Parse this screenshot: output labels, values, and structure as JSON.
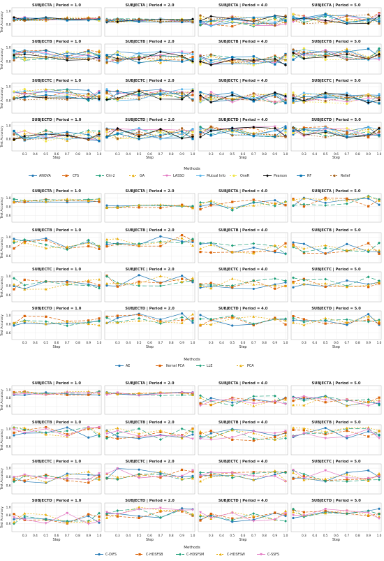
{
  "chart_data": [
    {
      "type": "line",
      "rows": [
        "SUBJECTA",
        "SUBJECTB",
        "SUBJECTC",
        "SUBJECTD"
      ],
      "periods": [
        "1.0",
        "2.0",
        "4.0",
        "5.0"
      ],
      "x": [
        0.2,
        0.3,
        0.5,
        0.7,
        0.9,
        1.0
      ],
      "xticks": [
        "0.3",
        "0.4",
        "0.5",
        "0.6",
        "0.7",
        "0.8",
        "0.9",
        "1.0"
      ],
      "xlabel": "Step",
      "ylabel": "Test Accuracy",
      "yticks": [
        "0.8",
        "1.0"
      ],
      "ylim": [
        0.65,
        1.02
      ],
      "grid": true,
      "legend_title": "Methods",
      "legend_position": "bottom",
      "series": [
        {
          "name": "ANOVA",
          "color": "#1f77b4",
          "dash": "",
          "marker": "circle"
        },
        {
          "name": "CFS",
          "color": "#d95f02",
          "dash": "4,2",
          "marker": "square"
        },
        {
          "name": "Chi-2",
          "color": "#1b9e77",
          "dash": "6,3",
          "marker": "diamond"
        },
        {
          "name": "GA",
          "color": "#e6ab02",
          "dash": "2,2",
          "marker": "triangle"
        },
        {
          "name": "LASSO",
          "color": "#e377c2",
          "dash": "",
          "marker": "tri-down"
        },
        {
          "name": "Mutual Info",
          "color": "#56b4e9",
          "dash": "",
          "marker": "circle"
        },
        {
          "name": "OneR",
          "color": "#f0e442",
          "dash": "2,2",
          "marker": "circle"
        },
        {
          "name": "Pearson",
          "color": "#000000",
          "dash": "",
          "marker": "diamond"
        },
        {
          "name": "RF",
          "color": "#0072b2",
          "dash": "",
          "marker": "square"
        },
        {
          "name": "Relief",
          "color": "#a6611a",
          "dash": "2,2",
          "marker": "circle"
        }
      ]
    },
    {
      "type": "line",
      "rows": [
        "SUBJECTA",
        "SUBJECTB",
        "SUBJECTC",
        "SUBJECTD"
      ],
      "periods": [
        "1.0",
        "2.0",
        "4.0",
        "5.0"
      ],
      "x": [
        0.2,
        0.3,
        0.5,
        0.7,
        0.9,
        1.0
      ],
      "xticks": [
        "0.3",
        "0.4",
        "0.5",
        "0.6",
        "0.7",
        "0.8",
        "0.9",
        "1.0"
      ],
      "xlabel": "Step",
      "ylabel": "Test Accuracy",
      "yticks": [
        "0.6",
        "0.8",
        "1.0"
      ],
      "ylim": [
        0.5,
        1.05
      ],
      "grid": true,
      "legend_title": "Methods",
      "legend_position": "bottom",
      "series": [
        {
          "name": "AE",
          "color": "#1f77b4",
          "dash": "",
          "marker": "circle"
        },
        {
          "name": "Kernel PCA",
          "color": "#d95f02",
          "dash": "4,2",
          "marker": "square"
        },
        {
          "name": "LLE",
          "color": "#1b9e77",
          "dash": "6,3",
          "marker": "diamond"
        },
        {
          "name": "PCA",
          "color": "#e6ab02",
          "dash": "2,2",
          "marker": "triangle"
        }
      ]
    },
    {
      "type": "line",
      "rows": [
        "SUBJECTA",
        "SUBJECTB",
        "SUBJECTC",
        "SUBJECTD"
      ],
      "periods": [
        "1.0",
        "2.0",
        "4.0",
        "5.0"
      ],
      "x": [
        0.2,
        0.3,
        0.5,
        0.7,
        0.9,
        1.0
      ],
      "xticks": [
        "0.3",
        "0.4",
        "0.5",
        "0.6",
        "0.7",
        "0.8",
        "0.9",
        "1.0"
      ],
      "xlabel": "Step",
      "ylabel": "Test Accuracy",
      "yticks": [
        "0.6",
        "0.8",
        "1.0"
      ],
      "ylim": [
        0.45,
        1.05
      ],
      "grid": true,
      "legend_title": "Methods",
      "legend_position": "bottom",
      "series": [
        {
          "name": "C-DIFS",
          "color": "#1f77b4",
          "dash": "",
          "marker": "circle"
        },
        {
          "name": "C-HDSFSB",
          "color": "#d95f02",
          "dash": "4,2",
          "marker": "square"
        },
        {
          "name": "C-HDSFSM",
          "color": "#1b9e77",
          "dash": "6,3",
          "marker": "diamond"
        },
        {
          "name": "C-HDSFSW",
          "color": "#e6ab02",
          "dash": "2,2",
          "marker": "triangle"
        },
        {
          "name": "C-SSFS",
          "color": "#e377c2",
          "dash": "",
          "marker": "tri-down"
        }
      ]
    }
  ]
}
